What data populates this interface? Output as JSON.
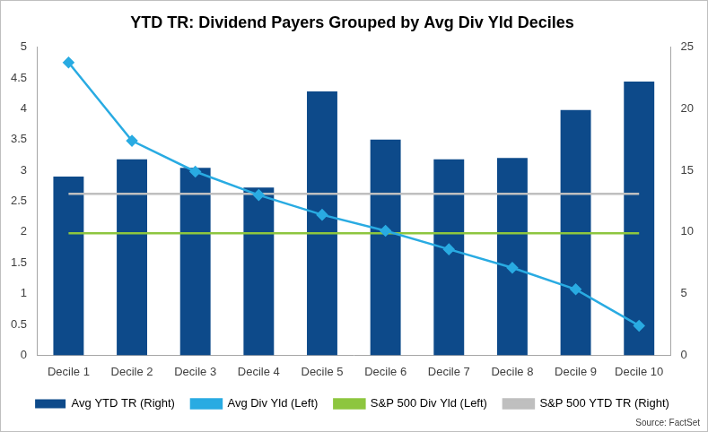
{
  "chart_data": {
    "type": "bar",
    "title": "YTD TR: Dividend Payers Grouped by Avg Div Yld Deciles",
    "annotations": [
      "Source: FactSet"
    ],
    "categories": [
      "Decile 1",
      "Decile 2",
      "Decile 3",
      "Decile 4",
      "Decile 5",
      "Decile 6",
      "Decile 7",
      "Decile 8",
      "Decile 9",
      "Decile 10"
    ],
    "series": [
      {
        "name": "Avg YTD TR (Right)",
        "type": "bar",
        "axis": "y2",
        "color": "#0d4a8a",
        "values": [
          14.5,
          15.9,
          15.2,
          13.6,
          21.4,
          17.5,
          15.9,
          16.0,
          19.9,
          22.2
        ]
      },
      {
        "name": "Avg Div Yld (Left)",
        "type": "line",
        "color": "#29abe2",
        "marker": "diamond",
        "line_style": "solid",
        "values": [
          4.75,
          3.48,
          2.98,
          2.6,
          2.28,
          2.02,
          1.72,
          1.42,
          1.07,
          0.48
        ]
      },
      {
        "name": "S&P 500 Div Yld (Left)",
        "type": "line",
        "color": "#8dc63f",
        "line_style": "solid",
        "values": [
          1.98,
          1.98,
          1.98,
          1.98,
          1.98,
          1.98,
          1.98,
          1.98,
          1.98,
          1.98
        ]
      },
      {
        "name": "S&P 500 YTD TR (Right)",
        "type": "line",
        "axis": "y2",
        "color": "#bfbfbf",
        "line_style": "solid",
        "values": [
          13.1,
          13.1,
          13.1,
          13.1,
          13.1,
          13.1,
          13.1,
          13.1,
          13.1,
          13.1
        ]
      }
    ],
    "ylim": [
      0,
      5
    ],
    "yticks": [
      0,
      0.5,
      1,
      1.5,
      2,
      2.5,
      3,
      3.5,
      4,
      4.5,
      5
    ],
    "y2lim": [
      0,
      25
    ],
    "y2ticks": [
      0,
      5,
      10,
      15,
      20,
      25
    ],
    "grid": false,
    "legend": "bottom"
  }
}
